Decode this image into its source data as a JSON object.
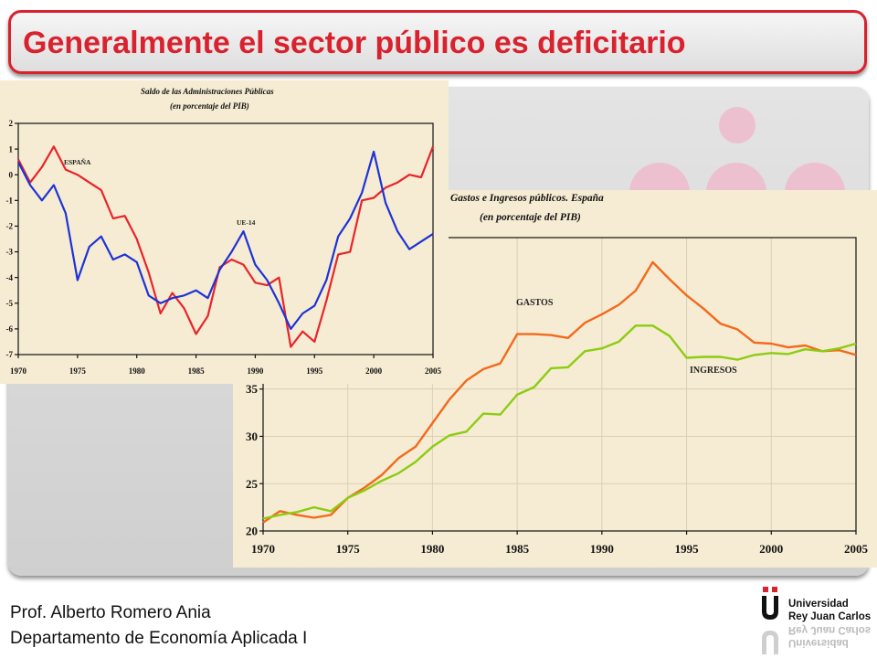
{
  "header": {
    "title": "Generalmente el sector público es deficitario"
  },
  "footer": {
    "author": "Prof. Alberto Romero Ania",
    "department": "Departamento de Economía Aplicada I"
  },
  "logo": {
    "line1": "Universidad",
    "line2": "Rey Juan Carlos",
    "icon": "university-u-logo-icon"
  },
  "colors": {
    "accent": "#d8222e",
    "espana": "#e8242a",
    "ue14": "#1d33d6",
    "gastos": "#f26a1c",
    "ingresos": "#8ccc12",
    "chart_bg": "#f6ecd3",
    "decor": "#edc0cf"
  },
  "chart_data": [
    {
      "type": "line",
      "title": "Saldo de las Administraciones Públicas",
      "subtitle": "(en porcentaje del PIB)",
      "xlim": [
        1970,
        2005
      ],
      "ylim": [
        -7,
        2
      ],
      "x_ticks": [
        1970,
        1975,
        1980,
        1985,
        1990,
        1995,
        2000,
        2005
      ],
      "y_ticks": [
        2,
        1,
        0,
        -1,
        -2,
        -3,
        -4,
        -5,
        -6,
        -7
      ],
      "grid": false,
      "series": [
        {
          "name": "ESPAÑA",
          "x": [
            1970,
            1971,
            1972,
            1973,
            1974,
            1975,
            1976,
            1977,
            1978,
            1979,
            1980,
            1981,
            1982,
            1983,
            1984,
            1985,
            1986,
            1987,
            1988,
            1989,
            1990,
            1991,
            1992,
            1993,
            1994,
            1995,
            1996,
            1997,
            1998,
            1999,
            2000,
            2001,
            2002,
            2003,
            2004,
            2005
          ],
          "values": [
            0.6,
            -0.3,
            0.3,
            1.1,
            0.2,
            0.0,
            -0.3,
            -0.6,
            -1.7,
            -1.6,
            -2.5,
            -3.8,
            -5.4,
            -4.6,
            -5.2,
            -6.2,
            -5.5,
            -3.6,
            -3.3,
            -3.5,
            -4.2,
            -4.3,
            -4.0,
            -6.7,
            -6.1,
            -6.5,
            -4.9,
            -3.1,
            -3.0,
            -1.0,
            -0.9,
            -0.5,
            -0.3,
            0.0,
            -0.1,
            1.1
          ]
        },
        {
          "name": "UE-14",
          "x": [
            1970,
            1971,
            1972,
            1973,
            1974,
            1975,
            1976,
            1977,
            1978,
            1979,
            1980,
            1981,
            1982,
            1983,
            1984,
            1985,
            1986,
            1987,
            1988,
            1989,
            1990,
            1991,
            1992,
            1993,
            1994,
            1995,
            1996,
            1997,
            1998,
            1999,
            2000,
            2001,
            2002,
            2003,
            2004,
            2005
          ],
          "values": [
            0.5,
            -0.4,
            -1.0,
            -0.4,
            -1.5,
            -4.1,
            -2.8,
            -2.4,
            -3.3,
            -3.1,
            -3.4,
            -4.7,
            -5.0,
            -4.8,
            -4.7,
            -4.5,
            -4.8,
            -3.7,
            -3.0,
            -2.2,
            -3.5,
            -4.1,
            -5.0,
            -6.0,
            -5.4,
            -5.1,
            -4.1,
            -2.4,
            -1.7,
            -0.7,
            0.9,
            -1.1,
            -2.2,
            -2.9,
            -2.6,
            -2.3
          ]
        }
      ]
    },
    {
      "type": "line",
      "title": "Gastos e Ingresos públicos. España",
      "subtitle": "(en porcentaje del PIB)",
      "xlim": [
        1970,
        2005
      ],
      "ylim": [
        20,
        51
      ],
      "x_ticks": [
        1970,
        1975,
        1980,
        1985,
        1990,
        1995,
        2000,
        2005
      ],
      "y_ticks": [
        20,
        25,
        30,
        35
      ],
      "grid": true,
      "series": [
        {
          "name": "GASTOS",
          "x": [
            1970,
            1971,
            1972,
            1973,
            1974,
            1975,
            1976,
            1977,
            1978,
            1979,
            1980,
            1981,
            1982,
            1983,
            1984,
            1985,
            1986,
            1987,
            1988,
            1989,
            1990,
            1991,
            1992,
            1993,
            1994,
            1995,
            1996,
            1997,
            1998,
            1999,
            2000,
            2001,
            2002,
            2003,
            2004,
            2005
          ],
          "values": [
            20.9,
            22.1,
            21.7,
            21.4,
            21.7,
            23.5,
            24.6,
            25.9,
            27.7,
            28.9,
            31.4,
            33.9,
            35.9,
            37.1,
            37.7,
            40.8,
            40.8,
            40.7,
            40.4,
            42.0,
            42.9,
            43.9,
            45.4,
            48.4,
            46.6,
            44.9,
            43.5,
            41.9,
            41.3,
            39.9,
            39.8,
            39.4,
            39.6,
            39.0,
            39.1,
            38.6
          ]
        },
        {
          "name": "INGRESOS",
          "x": [
            1970,
            1971,
            1972,
            1973,
            1974,
            1975,
            1976,
            1977,
            1978,
            1979,
            1980,
            1981,
            1982,
            1983,
            1984,
            1985,
            1986,
            1987,
            1988,
            1989,
            1990,
            1991,
            1992,
            1993,
            1994,
            1995,
            1996,
            1997,
            1998,
            1999,
            2000,
            2001,
            2002,
            2003,
            2004,
            2005
          ],
          "values": [
            21.3,
            21.7,
            22.0,
            22.5,
            22.1,
            23.5,
            24.3,
            25.3,
            26.1,
            27.3,
            28.9,
            30.1,
            30.5,
            32.4,
            32.3,
            34.4,
            35.2,
            37.2,
            37.3,
            39.0,
            39.3,
            40.0,
            41.7,
            41.7,
            40.6,
            38.3,
            38.4,
            38.4,
            38.1,
            38.6,
            38.8,
            38.7,
            39.2,
            39.0,
            39.3,
            39.8
          ]
        }
      ]
    }
  ]
}
